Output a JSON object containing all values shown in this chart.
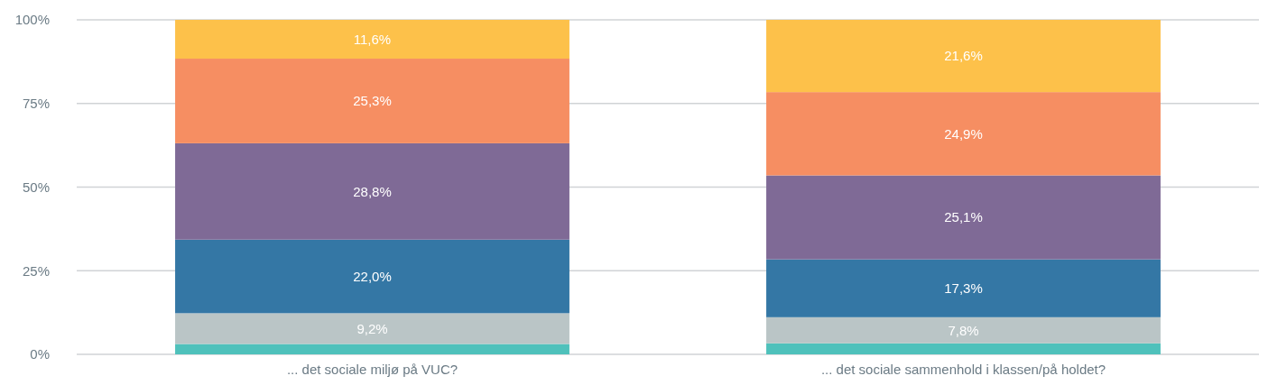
{
  "chart_data": {
    "type": "bar",
    "stacked": true,
    "categories": [
      "... det sociale miljø på VUC?",
      "... det sociale sammenhold i klassen/på holdet?"
    ],
    "series": [
      {
        "color": "#4fc1bb",
        "values": [
          3.1,
          3.3
        ],
        "value_labels": [
          null,
          null
        ]
      },
      {
        "color": "#bac5c6",
        "values": [
          9.2,
          7.8
        ],
        "value_labels": [
          "9,2%",
          "7,8%"
        ]
      },
      {
        "color": "#3477a5",
        "values": [
          22.0,
          17.3
        ],
        "value_labels": [
          "22,0%",
          "17,3%"
        ]
      },
      {
        "color": "#7f6a96",
        "values": [
          28.8,
          25.1
        ],
        "value_labels": [
          "28,8%",
          "25,1%"
        ]
      },
      {
        "color": "#f68e62",
        "values": [
          25.3,
          24.9
        ],
        "value_labels": [
          "25,3%",
          "24,9%"
        ]
      },
      {
        "color": "#fdc14a",
        "values": [
          11.6,
          21.6
        ],
        "value_labels": [
          "11,6%",
          "21,6%"
        ]
      }
    ],
    "ylim": [
      0,
      100
    ],
    "yticks": [
      {
        "value": 0,
        "label": "0%"
      },
      {
        "value": 25,
        "label": "25%"
      },
      {
        "value": 50,
        "label": "50%"
      },
      {
        "value": 75,
        "label": "75%"
      },
      {
        "value": 100,
        "label": "100%"
      }
    ],
    "grid": "y"
  }
}
